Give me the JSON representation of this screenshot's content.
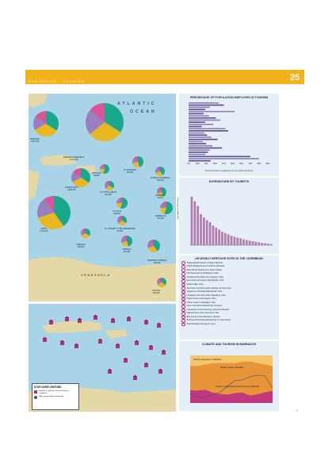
{
  "header": {
    "page_number": "25",
    "band_text": "CARIBBEAN · TOURISM"
  },
  "map_main": {
    "ocean_label_1": "ATLANTIC",
    "ocean_label_2": "OCEAN",
    "land_label": "VENEZUELA",
    "pies": [
      {
        "name": "BAHAMAS",
        "value": "1,627,000"
      },
      {
        "name": "DOMINICAN REPUBLIC",
        "value": "3,247,000"
      },
      {
        "name": "ANGUILLA",
        "value": "62,000"
      },
      {
        "name": "ST. MAARTEN",
        "value": "468,000"
      },
      {
        "name": "ANTIGUA & BARBUDA",
        "value": "265,000"
      },
      {
        "name": "PUERTO RICO",
        "value": "3,686,000"
      },
      {
        "name": "ST. KITTS & NEVIS",
        "value": "124,000"
      },
      {
        "name": "ST. LUCIA",
        "value": "298,000"
      },
      {
        "name": "DOMINICA",
        "value": "73,000"
      },
      {
        "name": "ARUBA",
        "value": "1,211,000"
      },
      {
        "name": "CURAÇAO",
        "value": "409,000"
      },
      {
        "name": "ST. VINCENT & THE GRENADINES",
        "value": "90,000"
      },
      {
        "name": "BARBADOS",
        "value": "519,000"
      },
      {
        "name": "GRENADA",
        "value": "133,000"
      },
      {
        "name": "TRINIDAD & TOBAGO",
        "value": "432,000"
      },
      {
        "name": "GUYANA",
        "value": "220,000"
      }
    ],
    "colors": {
      "green": "#1aa88c",
      "yellow": "#e8b821",
      "purple": "#9a7fc0",
      "pink": "#d9559a",
      "sea": "#a9d3e6",
      "land": "#e5d8a8"
    }
  },
  "map_stopover": {
    "legend_title": "STOP-OVER VISITORS",
    "legend_items": [
      "Number of 'stopover' tourists arriving in Caribbean",
      "Major airports with tourism traffic"
    ]
  },
  "panel_employment": {
    "title": "PERCENTAGE OF POPULATION EMPLOYED IN TOURISM",
    "axis_ticks": [
      "0%",
      "10%",
      "20%",
      "30%",
      "40%",
      "50%",
      "60%",
      "70%",
      "80%",
      "90%"
    ],
    "axis_caption": "Direct and indirect employment as % of total employment"
  },
  "panel_expenditure": {
    "title": "EXPENDITURE BY TOURISTS",
    "ylabel": "Expenditure in US$ millions"
  },
  "panel_sites": {
    "title": "UN WORLD HERITAGE SITES IN THE CARIBBEAN",
    "sites": [
      "Antigua Naval Dockyard, Antigua & Barbuda",
      "Historic Bridgetown and its Garrison, Barbados",
      "Belize Barrier Reef Reserve System, Belize",
      "Old Havana and its Fortifications, Cuba",
      "Trinidad and the Valley de los Ingenios, Cuba",
      "Desembarco del Granma National Park, Cuba",
      "Viñales Valley, Cuba",
      "San Pedro de la Roca Castle, Santiago de Cuba, Cuba",
      "Alejandro de Humboldt National Park, Cuba",
      "Landscape of the First Coffee Plantations, Cuba",
      "Historic Centre of Cienfuegos, Cuba",
      "Historic Centre of Camagüey, Cuba",
      "Morne Trois Pitons National Park, Dominica",
      "Colonial City of Santo Domingo, Dominican Republic",
      "National History Park, Sans Souci, Haiti",
      "Blue and John Crow Mountains, Jamaica",
      "Brimstone Hill Fortress National Park, St. Kitts & Nevis",
      "Pitons Management Area, St. Lucia"
    ]
  },
  "panel_climate": {
    "title": "CLIMATE AND TOURISM IN BARBADOS",
    "annotations": [
      "Monthly temperature in Barbados",
      "Monthly rainfall in Barbados",
      "Number of international tourists arriving in Barbados"
    ]
  },
  "chart_data": [
    {
      "type": "bar",
      "orientation": "horizontal",
      "title": "PERCENTAGE OF POPULATION EMPLOYED IN TOURISM",
      "xlabel": "Direct and indirect employment as % of total employment",
      "xlim": [
        0,
        90
      ],
      "values": [
        34,
        40,
        24,
        19,
        52,
        17,
        23,
        31,
        36,
        19,
        28,
        15,
        42,
        45,
        18,
        21,
        26,
        33,
        16,
        20,
        27,
        38,
        24,
        22,
        19,
        70,
        80,
        25
      ]
    },
    {
      "type": "bar",
      "title": "EXPENDITURE BY TOURISTS",
      "ylabel": "Expenditure in US$ millions",
      "ylim": [
        0,
        4000
      ],
      "values": [
        3600,
        3250,
        2900,
        2300,
        2050,
        1850,
        1700,
        1450,
        1300,
        1150,
        1000,
        900,
        800,
        700,
        620,
        560,
        500,
        430,
        380,
        330,
        290,
        250,
        210,
        170,
        140,
        110,
        80
      ]
    },
    {
      "type": "area",
      "title": "CLIMATE AND TOURISM IN BARBADOS",
      "series": [
        {
          "values": [
            26,
            26,
            27,
            28,
            28,
            28,
            28,
            29,
            29,
            28,
            27,
            26
          ]
        },
        {
          "values": [
            60,
            40,
            35,
            55,
            70,
            110,
            145,
            150,
            170,
            180,
            175,
            95
          ]
        },
        {
          "values": [
            62,
            60,
            64,
            50,
            44,
            40,
            48,
            50,
            36,
            42,
            52,
            58
          ]
        }
      ]
    }
  ]
}
